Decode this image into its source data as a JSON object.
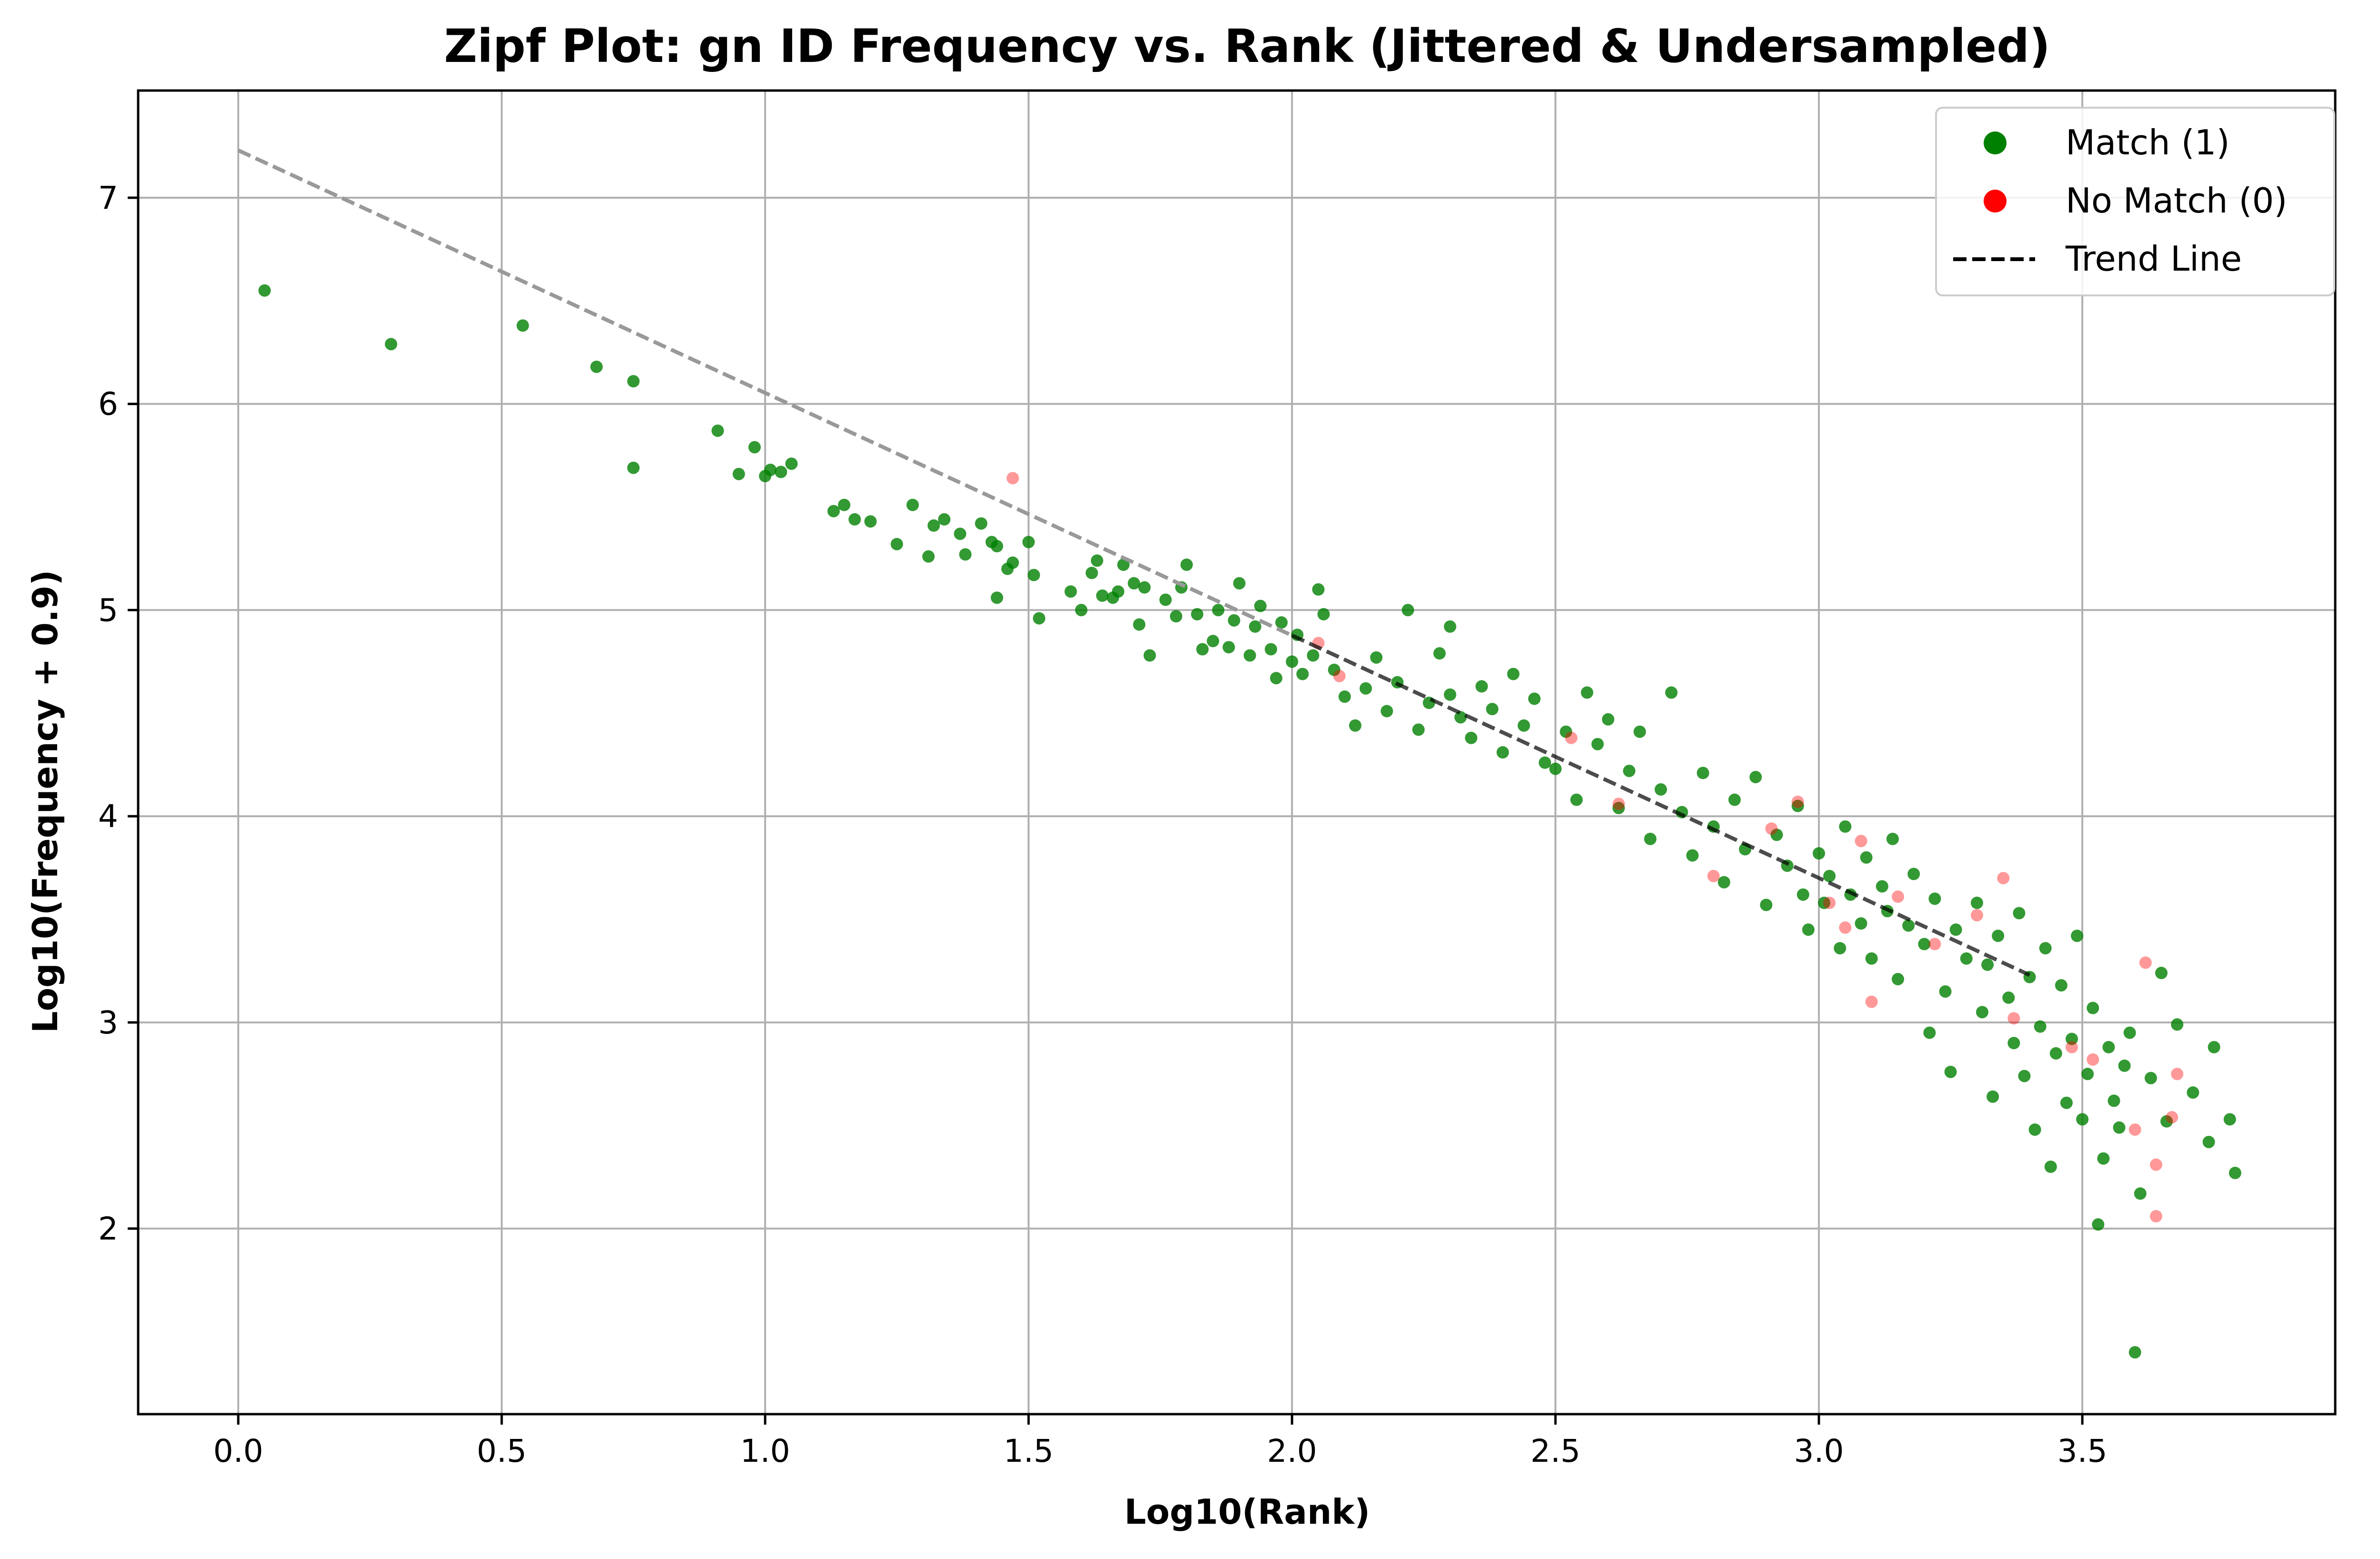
{
  "chart_data": {
    "type": "scatter",
    "title": "Zipf Plot: gn ID Frequency vs. Rank (Jittered & Undersampled)",
    "xlabel": "Log10(Rank)",
    "ylabel": "Log10(Frequency + 0.9)",
    "xlim": [
      -0.19,
      3.98
    ],
    "ylim": [
      1.1,
      7.52
    ],
    "x_ticks": [
      0.0,
      0.5,
      1.0,
      1.5,
      2.0,
      2.5,
      3.0,
      3.5
    ],
    "x_tick_labels": [
      "0.0",
      "0.5",
      "1.0",
      "1.5",
      "2.0",
      "2.5",
      "3.0",
      "3.5"
    ],
    "y_ticks": [
      2,
      3,
      4,
      5,
      6,
      7
    ],
    "y_tick_labels": [
      "2",
      "3",
      "4",
      "5",
      "6",
      "7"
    ],
    "grid": true,
    "legend_position": "top-right",
    "legend": [
      {
        "label": "Match (1)",
        "marker": "circle",
        "color": "#008000"
      },
      {
        "label": "No Match (0)",
        "marker": "circle",
        "color": "#ff0000"
      },
      {
        "label": "Trend Line",
        "marker": "dashed-line",
        "color": "#000000"
      }
    ],
    "trend_line": {
      "name": "Trend Line",
      "x": [
        0.0,
        3.4
      ],
      "y": [
        7.23,
        3.23
      ],
      "color": "#000000"
    },
    "series": [
      {
        "name": "Match (1)",
        "color": "#008000",
        "opacity": 0.8,
        "points": [
          [
            0.05,
            6.55
          ],
          [
            0.29,
            6.29
          ],
          [
            0.54,
            6.38
          ],
          [
            0.68,
            6.18
          ],
          [
            0.75,
            6.11
          ],
          [
            0.75,
            5.69
          ],
          [
            0.91,
            5.87
          ],
          [
            0.95,
            5.66
          ],
          [
            0.98,
            5.79
          ],
          [
            1.0,
            5.65
          ],
          [
            1.01,
            5.68
          ],
          [
            1.03,
            5.67
          ],
          [
            1.05,
            5.71
          ],
          [
            1.13,
            5.48
          ],
          [
            1.15,
            5.51
          ],
          [
            1.17,
            5.44
          ],
          [
            1.2,
            5.43
          ],
          [
            1.25,
            5.32
          ],
          [
            1.28,
            5.51
          ],
          [
            1.31,
            5.26
          ],
          [
            1.32,
            5.41
          ],
          [
            1.34,
            5.44
          ],
          [
            1.37,
            5.37
          ],
          [
            1.38,
            5.27
          ],
          [
            1.41,
            5.42
          ],
          [
            1.43,
            5.33
          ],
          [
            1.44,
            5.31
          ],
          [
            1.44,
            5.06
          ],
          [
            1.46,
            5.2
          ],
          [
            1.47,
            5.23
          ],
          [
            1.5,
            5.33
          ],
          [
            1.51,
            5.17
          ],
          [
            1.52,
            4.96
          ],
          [
            1.58,
            5.09
          ],
          [
            1.6,
            5.0
          ],
          [
            1.62,
            5.18
          ],
          [
            1.63,
            5.24
          ],
          [
            1.64,
            5.07
          ],
          [
            1.66,
            5.06
          ],
          [
            1.67,
            5.09
          ],
          [
            1.68,
            5.22
          ],
          [
            1.7,
            5.13
          ],
          [
            1.71,
            4.93
          ],
          [
            1.72,
            5.11
          ],
          [
            1.73,
            4.78
          ],
          [
            1.76,
            5.05
          ],
          [
            1.78,
            4.97
          ],
          [
            1.79,
            5.11
          ],
          [
            1.8,
            5.22
          ],
          [
            1.82,
            4.98
          ],
          [
            1.83,
            4.81
          ],
          [
            1.85,
            4.85
          ],
          [
            1.86,
            5.0
          ],
          [
            1.88,
            4.82
          ],
          [
            1.89,
            4.95
          ],
          [
            1.9,
            5.13
          ],
          [
            1.92,
            4.78
          ],
          [
            1.93,
            4.92
          ],
          [
            1.94,
            5.02
          ],
          [
            1.96,
            4.81
          ],
          [
            1.97,
            4.67
          ],
          [
            1.98,
            4.94
          ],
          [
            2.0,
            4.75
          ],
          [
            2.01,
            4.88
          ],
          [
            2.02,
            4.69
          ],
          [
            2.04,
            4.78
          ],
          [
            2.05,
            5.1
          ],
          [
            2.06,
            4.98
          ],
          [
            2.08,
            4.71
          ],
          [
            2.1,
            4.58
          ],
          [
            2.12,
            4.44
          ],
          [
            2.14,
            4.62
          ],
          [
            2.16,
            4.77
          ],
          [
            2.18,
            4.51
          ],
          [
            2.2,
            4.65
          ],
          [
            2.22,
            5.0
          ],
          [
            2.24,
            4.42
          ],
          [
            2.26,
            4.55
          ],
          [
            2.28,
            4.79
          ],
          [
            2.3,
            4.59
          ],
          [
            2.3,
            4.92
          ],
          [
            2.32,
            4.48
          ],
          [
            2.34,
            4.38
          ],
          [
            2.36,
            4.63
          ],
          [
            2.38,
            4.52
          ],
          [
            2.4,
            4.31
          ],
          [
            2.42,
            4.69
          ],
          [
            2.44,
            4.44
          ],
          [
            2.46,
            4.57
          ],
          [
            2.48,
            4.26
          ],
          [
            2.5,
            4.23
          ],
          [
            2.52,
            4.41
          ],
          [
            2.54,
            4.08
          ],
          [
            2.56,
            4.6
          ],
          [
            2.58,
            4.35
          ],
          [
            2.6,
            4.47
          ],
          [
            2.62,
            4.04
          ],
          [
            2.64,
            4.22
          ],
          [
            2.66,
            4.41
          ],
          [
            2.68,
            3.89
          ],
          [
            2.7,
            4.13
          ],
          [
            2.72,
            4.6
          ],
          [
            2.74,
            4.02
          ],
          [
            2.76,
            3.81
          ],
          [
            2.78,
            4.21
          ],
          [
            2.8,
            3.95
          ],
          [
            2.82,
            3.68
          ],
          [
            2.84,
            4.08
          ],
          [
            2.86,
            3.84
          ],
          [
            2.88,
            4.19
          ],
          [
            2.9,
            3.57
          ],
          [
            2.92,
            3.91
          ],
          [
            2.94,
            3.76
          ],
          [
            2.96,
            4.05
          ],
          [
            2.97,
            3.62
          ],
          [
            2.98,
            3.45
          ],
          [
            3.0,
            3.82
          ],
          [
            3.01,
            3.58
          ],
          [
            3.02,
            3.71
          ],
          [
            3.04,
            3.36
          ],
          [
            3.05,
            3.95
          ],
          [
            3.06,
            3.62
          ],
          [
            3.08,
            3.48
          ],
          [
            3.09,
            3.8
          ],
          [
            3.1,
            3.31
          ],
          [
            3.12,
            3.66
          ],
          [
            3.13,
            3.54
          ],
          [
            3.14,
            3.89
          ],
          [
            3.15,
            3.21
          ],
          [
            3.17,
            3.47
          ],
          [
            3.18,
            3.72
          ],
          [
            3.2,
            3.38
          ],
          [
            3.21,
            2.95
          ],
          [
            3.22,
            3.6
          ],
          [
            3.24,
            3.15
          ],
          [
            3.25,
            2.76
          ],
          [
            3.26,
            3.45
          ],
          [
            3.28,
            3.31
          ],
          [
            3.3,
            3.58
          ],
          [
            3.31,
            3.05
          ],
          [
            3.32,
            3.28
          ],
          [
            3.33,
            2.64
          ],
          [
            3.34,
            3.42
          ],
          [
            3.36,
            3.12
          ],
          [
            3.37,
            2.9
          ],
          [
            3.38,
            3.53
          ],
          [
            3.39,
            2.74
          ],
          [
            3.4,
            3.22
          ],
          [
            3.41,
            2.48
          ],
          [
            3.42,
            2.98
          ],
          [
            3.43,
            3.36
          ],
          [
            3.44,
            2.3
          ],
          [
            3.45,
            2.85
          ],
          [
            3.46,
            3.18
          ],
          [
            3.47,
            2.61
          ],
          [
            3.48,
            2.92
          ],
          [
            3.49,
            3.42
          ],
          [
            3.5,
            2.53
          ],
          [
            3.51,
            2.75
          ],
          [
            3.52,
            3.07
          ],
          [
            3.53,
            2.02
          ],
          [
            3.54,
            2.34
          ],
          [
            3.55,
            2.88
          ],
          [
            3.56,
            2.62
          ],
          [
            3.57,
            2.49
          ],
          [
            3.58,
            2.79
          ],
          [
            3.59,
            2.95
          ],
          [
            3.6,
            1.4
          ],
          [
            3.61,
            2.17
          ],
          [
            3.63,
            2.73
          ],
          [
            3.65,
            3.24
          ],
          [
            3.66,
            2.52
          ],
          [
            3.68,
            2.99
          ],
          [
            3.71,
            2.66
          ],
          [
            3.74,
            2.42
          ],
          [
            3.75,
            2.88
          ],
          [
            3.78,
            2.53
          ],
          [
            3.79,
            2.27
          ]
        ]
      },
      {
        "name": "No Match (0)",
        "color": "#ff0000",
        "opacity": 0.4,
        "points": [
          [
            1.47,
            5.64
          ],
          [
            2.05,
            4.84
          ],
          [
            2.09,
            4.68
          ],
          [
            2.53,
            4.38
          ],
          [
            2.62,
            4.06
          ],
          [
            2.8,
            3.71
          ],
          [
            2.91,
            3.94
          ],
          [
            2.96,
            4.07
          ],
          [
            3.02,
            3.58
          ],
          [
            3.05,
            3.46
          ],
          [
            3.08,
            3.88
          ],
          [
            3.1,
            3.1
          ],
          [
            3.15,
            3.61
          ],
          [
            3.22,
            3.38
          ],
          [
            3.3,
            3.52
          ],
          [
            3.35,
            3.7
          ],
          [
            3.37,
            3.02
          ],
          [
            3.48,
            2.88
          ],
          [
            3.52,
            2.82
          ],
          [
            3.6,
            2.48
          ],
          [
            3.62,
            3.29
          ],
          [
            3.64,
            2.31
          ],
          [
            3.64,
            2.06
          ],
          [
            3.67,
            2.54
          ],
          [
            3.68,
            2.75
          ]
        ]
      }
    ]
  }
}
